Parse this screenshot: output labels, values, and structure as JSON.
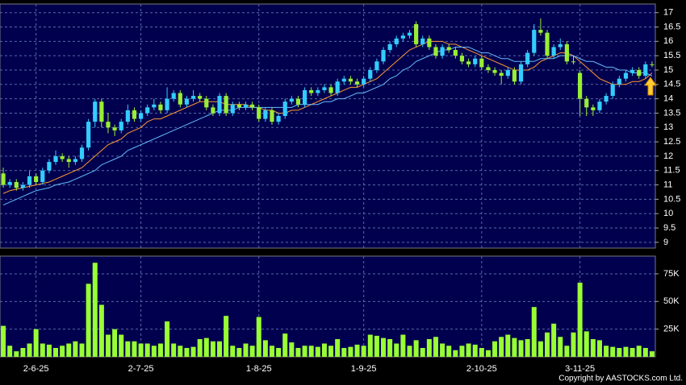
{
  "chart_data": [
    {
      "type": "candlestick",
      "categories": [
        null,
        null,
        null,
        null,
        null,
        "2-6-25",
        null,
        null,
        null,
        null,
        null,
        null,
        null,
        null,
        null,
        null,
        null,
        null,
        null,
        null,
        null,
        "2-7-25",
        null,
        null,
        null,
        null,
        null,
        null,
        null,
        null,
        null,
        null,
        null,
        null,
        null,
        null,
        null,
        null,
        null,
        "1-8-25",
        null,
        null,
        null,
        null,
        null,
        null,
        null,
        null,
        null,
        null,
        null,
        null,
        null,
        null,
        null,
        "1-9-25",
        null,
        null,
        null,
        null,
        null,
        null,
        null,
        null,
        null,
        null,
        null,
        null,
        null,
        null,
        null,
        null,
        null,
        "2-10-25",
        null,
        null,
        null,
        null,
        null,
        null,
        null,
        null,
        null,
        null,
        null,
        null,
        null,
        null,
        "3-11-25",
        null,
        null,
        null,
        null,
        null,
        null,
        null,
        null,
        null,
        null,
        null
      ],
      "open": [
        11.4,
        11.0,
        11.1,
        10.9,
        11.0,
        11.3,
        11.1,
        11.5,
        11.8,
        12.0,
        11.9,
        11.8,
        11.9,
        12.3,
        13.2,
        13.9,
        13.2,
        13.0,
        12.9,
        13.2,
        13.6,
        13.3,
        13.5,
        13.7,
        13.8,
        13.6,
        14.0,
        14.2,
        13.8,
        14.0,
        14.1,
        14.0,
        13.7,
        13.5,
        14.1,
        13.5,
        13.8,
        13.7,
        13.8,
        13.7,
        13.3,
        13.6,
        13.2,
        13.4,
        13.9,
        14.0,
        13.8,
        14.3,
        14.2,
        14.3,
        14.4,
        14.2,
        14.6,
        14.7,
        14.6,
        14.5,
        14.7,
        15.0,
        15.3,
        15.7,
        15.9,
        16.1,
        16.2,
        16.6,
        15.9,
        16.1,
        15.8,
        15.5,
        15.8,
        15.7,
        15.5,
        15.3,
        15.2,
        15.4,
        15.1,
        15.0,
        14.9,
        14.8,
        15.0,
        14.6,
        15.2,
        15.6,
        16.4,
        16.3,
        15.5,
        15.8,
        15.9,
        15.3,
        14.9,
        14.0,
        13.7,
        13.6,
        13.9,
        14.1,
        14.5,
        14.7,
        14.9,
        15.0,
        14.8,
        15.2
      ],
      "high": [
        11.6,
        11.2,
        11.2,
        11.1,
        11.5,
        11.4,
        11.6,
        11.9,
        12.2,
        12.1,
        12.0,
        12.0,
        12.4,
        13.3,
        14.0,
        14.0,
        13.5,
        13.1,
        13.3,
        13.8,
        13.7,
        13.6,
        13.8,
        14.0,
        13.9,
        14.4,
        14.3,
        14.3,
        14.1,
        14.3,
        14.2,
        14.1,
        13.8,
        14.2,
        14.2,
        13.9,
        13.9,
        13.9,
        13.9,
        13.8,
        13.7,
        13.7,
        13.5,
        14.0,
        14.1,
        14.1,
        14.4,
        14.4,
        14.4,
        14.5,
        14.5,
        14.7,
        14.8,
        14.8,
        14.7,
        14.8,
        15.1,
        15.4,
        15.8,
        16.0,
        16.2,
        16.3,
        16.4,
        16.7,
        16.2,
        16.2,
        15.9,
        15.9,
        15.9,
        15.8,
        15.6,
        15.4,
        15.5,
        15.5,
        15.2,
        15.1,
        15.0,
        15.1,
        15.1,
        15.3,
        15.7,
        16.6,
        16.8,
        16.4,
        15.9,
        16.1,
        16.0,
        15.5,
        15.0,
        14.1,
        13.8,
        14.0,
        14.2,
        14.6,
        14.8,
        15.0,
        15.1,
        15.1,
        15.3,
        15.3
      ],
      "low": [
        10.9,
        10.9,
        10.8,
        10.8,
        10.9,
        11.0,
        11.0,
        11.4,
        11.7,
        11.8,
        11.6,
        11.7,
        11.8,
        12.2,
        13.0,
        13.0,
        12.8,
        12.7,
        12.8,
        13.1,
        13.2,
        13.2,
        13.4,
        13.6,
        13.5,
        13.5,
        13.9,
        13.7,
        13.7,
        13.9,
        13.9,
        13.6,
        13.4,
        13.4,
        13.4,
        13.4,
        13.6,
        13.6,
        13.6,
        13.2,
        13.2,
        13.1,
        13.1,
        13.3,
        13.8,
        13.7,
        13.7,
        14.1,
        14.1,
        14.2,
        14.1,
        14.1,
        14.5,
        14.5,
        14.4,
        14.4,
        14.6,
        14.9,
        15.2,
        15.6,
        15.8,
        16.0,
        16.1,
        15.8,
        15.8,
        15.7,
        15.4,
        15.4,
        15.6,
        15.4,
        15.2,
        15.1,
        15.1,
        15.0,
        14.9,
        14.8,
        14.5,
        14.7,
        14.5,
        14.5,
        15.1,
        15.5,
        16.2,
        15.4,
        15.4,
        15.7,
        15.2,
        15.2,
        13.4,
        13.4,
        13.4,
        13.5,
        13.8,
        14.0,
        14.4,
        14.6,
        14.8,
        14.7,
        14.7,
        15.1
      ],
      "close": [
        11.0,
        11.1,
        10.9,
        11.0,
        11.3,
        11.1,
        11.5,
        11.8,
        12.0,
        11.9,
        11.8,
        11.9,
        12.3,
        13.2,
        13.9,
        13.2,
        13.0,
        12.9,
        13.2,
        13.6,
        13.3,
        13.5,
        13.7,
        13.8,
        13.6,
        14.0,
        14.2,
        13.8,
        14.0,
        14.1,
        14.0,
        13.7,
        13.5,
        14.1,
        13.5,
        13.8,
        13.7,
        13.8,
        13.7,
        13.3,
        13.6,
        13.2,
        13.4,
        13.9,
        14.0,
        13.8,
        14.3,
        14.2,
        14.3,
        14.4,
        14.2,
        14.6,
        14.7,
        14.6,
        14.5,
        14.7,
        15.0,
        15.3,
        15.7,
        15.9,
        16.1,
        16.2,
        16.3,
        15.9,
        16.1,
        15.8,
        15.5,
        15.8,
        15.7,
        15.5,
        15.3,
        15.2,
        15.4,
        15.1,
        15.0,
        14.9,
        14.8,
        15.0,
        14.6,
        15.2,
        15.6,
        16.4,
        16.3,
        15.5,
        15.8,
        15.9,
        15.3,
        15.3,
        14.0,
        13.7,
        13.6,
        13.9,
        14.1,
        14.5,
        14.7,
        14.9,
        15.0,
        14.8,
        15.2,
        15.2
      ],
      "up_color": "#33ccff",
      "down_color": "#99ee33",
      "series": [
        {
          "color": "#ff9933",
          "values": [
            10.7,
            10.8,
            10.85,
            10.9,
            10.95,
            11.0,
            11.05,
            11.1,
            11.2,
            11.3,
            11.4,
            11.5,
            11.6,
            11.8,
            12.0,
            12.2,
            12.4,
            12.5,
            12.6,
            12.8,
            12.9,
            13.0,
            13.2,
            13.3,
            13.3,
            13.4,
            13.5,
            13.6,
            13.7,
            13.8,
            13.9,
            13.9,
            13.9,
            13.9,
            13.8,
            13.8,
            13.8,
            13.8,
            13.7,
            13.7,
            13.6,
            13.6,
            13.5,
            13.5,
            13.6,
            13.6,
            13.7,
            13.8,
            13.9,
            14.0,
            14.1,
            14.2,
            14.3,
            14.4,
            14.4,
            14.5,
            14.6,
            14.7,
            14.9,
            15.1,
            15.3,
            15.5,
            15.7,
            15.8,
            15.9,
            16.0,
            16.0,
            16.0,
            15.9,
            15.9,
            15.8,
            15.7,
            15.6,
            15.5,
            15.4,
            15.3,
            15.2,
            15.1,
            15.0,
            15.0,
            15.0,
            15.1,
            15.3,
            15.4,
            15.5,
            15.6,
            15.6,
            15.5,
            15.3,
            15.1,
            14.9,
            14.7,
            14.6,
            14.5,
            14.5,
            14.5,
            14.6,
            14.6,
            14.7,
            14.9
          ]
        },
        {
          "color": "#66bbff",
          "values": [
            10.3,
            10.4,
            10.5,
            10.6,
            10.7,
            10.8,
            10.85,
            10.9,
            11.0,
            11.05,
            11.1,
            11.2,
            11.3,
            11.4,
            11.5,
            11.7,
            11.8,
            11.9,
            12.0,
            12.2,
            12.3,
            12.4,
            12.5,
            12.6,
            12.7,
            12.8,
            12.9,
            13.0,
            13.1,
            13.2,
            13.3,
            13.4,
            13.5,
            13.6,
            13.6,
            13.6,
            13.7,
            13.7,
            13.7,
            13.7,
            13.7,
            13.7,
            13.7,
            13.7,
            13.7,
            13.8,
            13.8,
            13.8,
            13.8,
            13.9,
            13.9,
            14.0,
            14.0,
            14.1,
            14.2,
            14.2,
            14.3,
            14.4,
            14.5,
            14.7,
            14.8,
            15.0,
            15.1,
            15.3,
            15.4,
            15.5,
            15.6,
            15.7,
            15.7,
            15.8,
            15.8,
            15.8,
            15.7,
            15.6,
            15.6,
            15.5,
            15.4,
            15.4,
            15.3,
            15.3,
            15.3,
            15.3,
            15.4,
            15.4,
            15.4,
            15.5,
            15.5,
            15.5,
            15.4,
            15.3,
            15.3,
            15.2,
            15.1,
            15.1,
            15.0,
            15.0,
            14.9,
            14.9,
            14.9,
            14.8
          ]
        }
      ],
      "ylim": [
        8.8,
        17.3
      ],
      "yticks": [
        9,
        9.5,
        10,
        10.5,
        11,
        11.5,
        12,
        12.5,
        13,
        13.5,
        14,
        14.5,
        15,
        15.5,
        16,
        16.5,
        17
      ],
      "grid": true
    },
    {
      "type": "bar",
      "values": [
        28000,
        10000,
        5000,
        8000,
        12000,
        25000,
        12000,
        11000,
        8000,
        10000,
        12000,
        14000,
        12000,
        66000,
        85000,
        47000,
        20000,
        25000,
        20000,
        14000,
        14000,
        12000,
        12000,
        10000,
        12000,
        32000,
        12000,
        10000,
        8000,
        9000,
        16000,
        17000,
        14000,
        14000,
        37000,
        10000,
        8000,
        12000,
        10000,
        36000,
        15000,
        10000,
        8000,
        21000,
        13000,
        8000,
        10000,
        10000,
        9000,
        12000,
        10000,
        16000,
        8000,
        9000,
        11000,
        10000,
        20000,
        19000,
        17000,
        16000,
        12000,
        20000,
        10000,
        15000,
        8000,
        16000,
        18000,
        12000,
        10000,
        6000,
        10000,
        12000,
        11000,
        8000,
        6000,
        14000,
        18000,
        20000,
        17000,
        15000,
        16000,
        45000,
        14000,
        22000,
        30000,
        18000,
        10000,
        22000,
        67000,
        23000,
        16000,
        15000,
        10000,
        9000,
        8000,
        9000,
        8000,
        10000,
        8000,
        5000
      ],
      "color": "#99ff33",
      "ylim": [
        0,
        91000
      ],
      "yticks": [
        {
          "value": 25000,
          "label": "25K"
        },
        {
          "value": 50000,
          "label": "50K"
        },
        {
          "value": 75000,
          "label": "75K"
        }
      ],
      "grid": true
    }
  ],
  "footer": "Copyright by AASTOCKS.com Ltd."
}
